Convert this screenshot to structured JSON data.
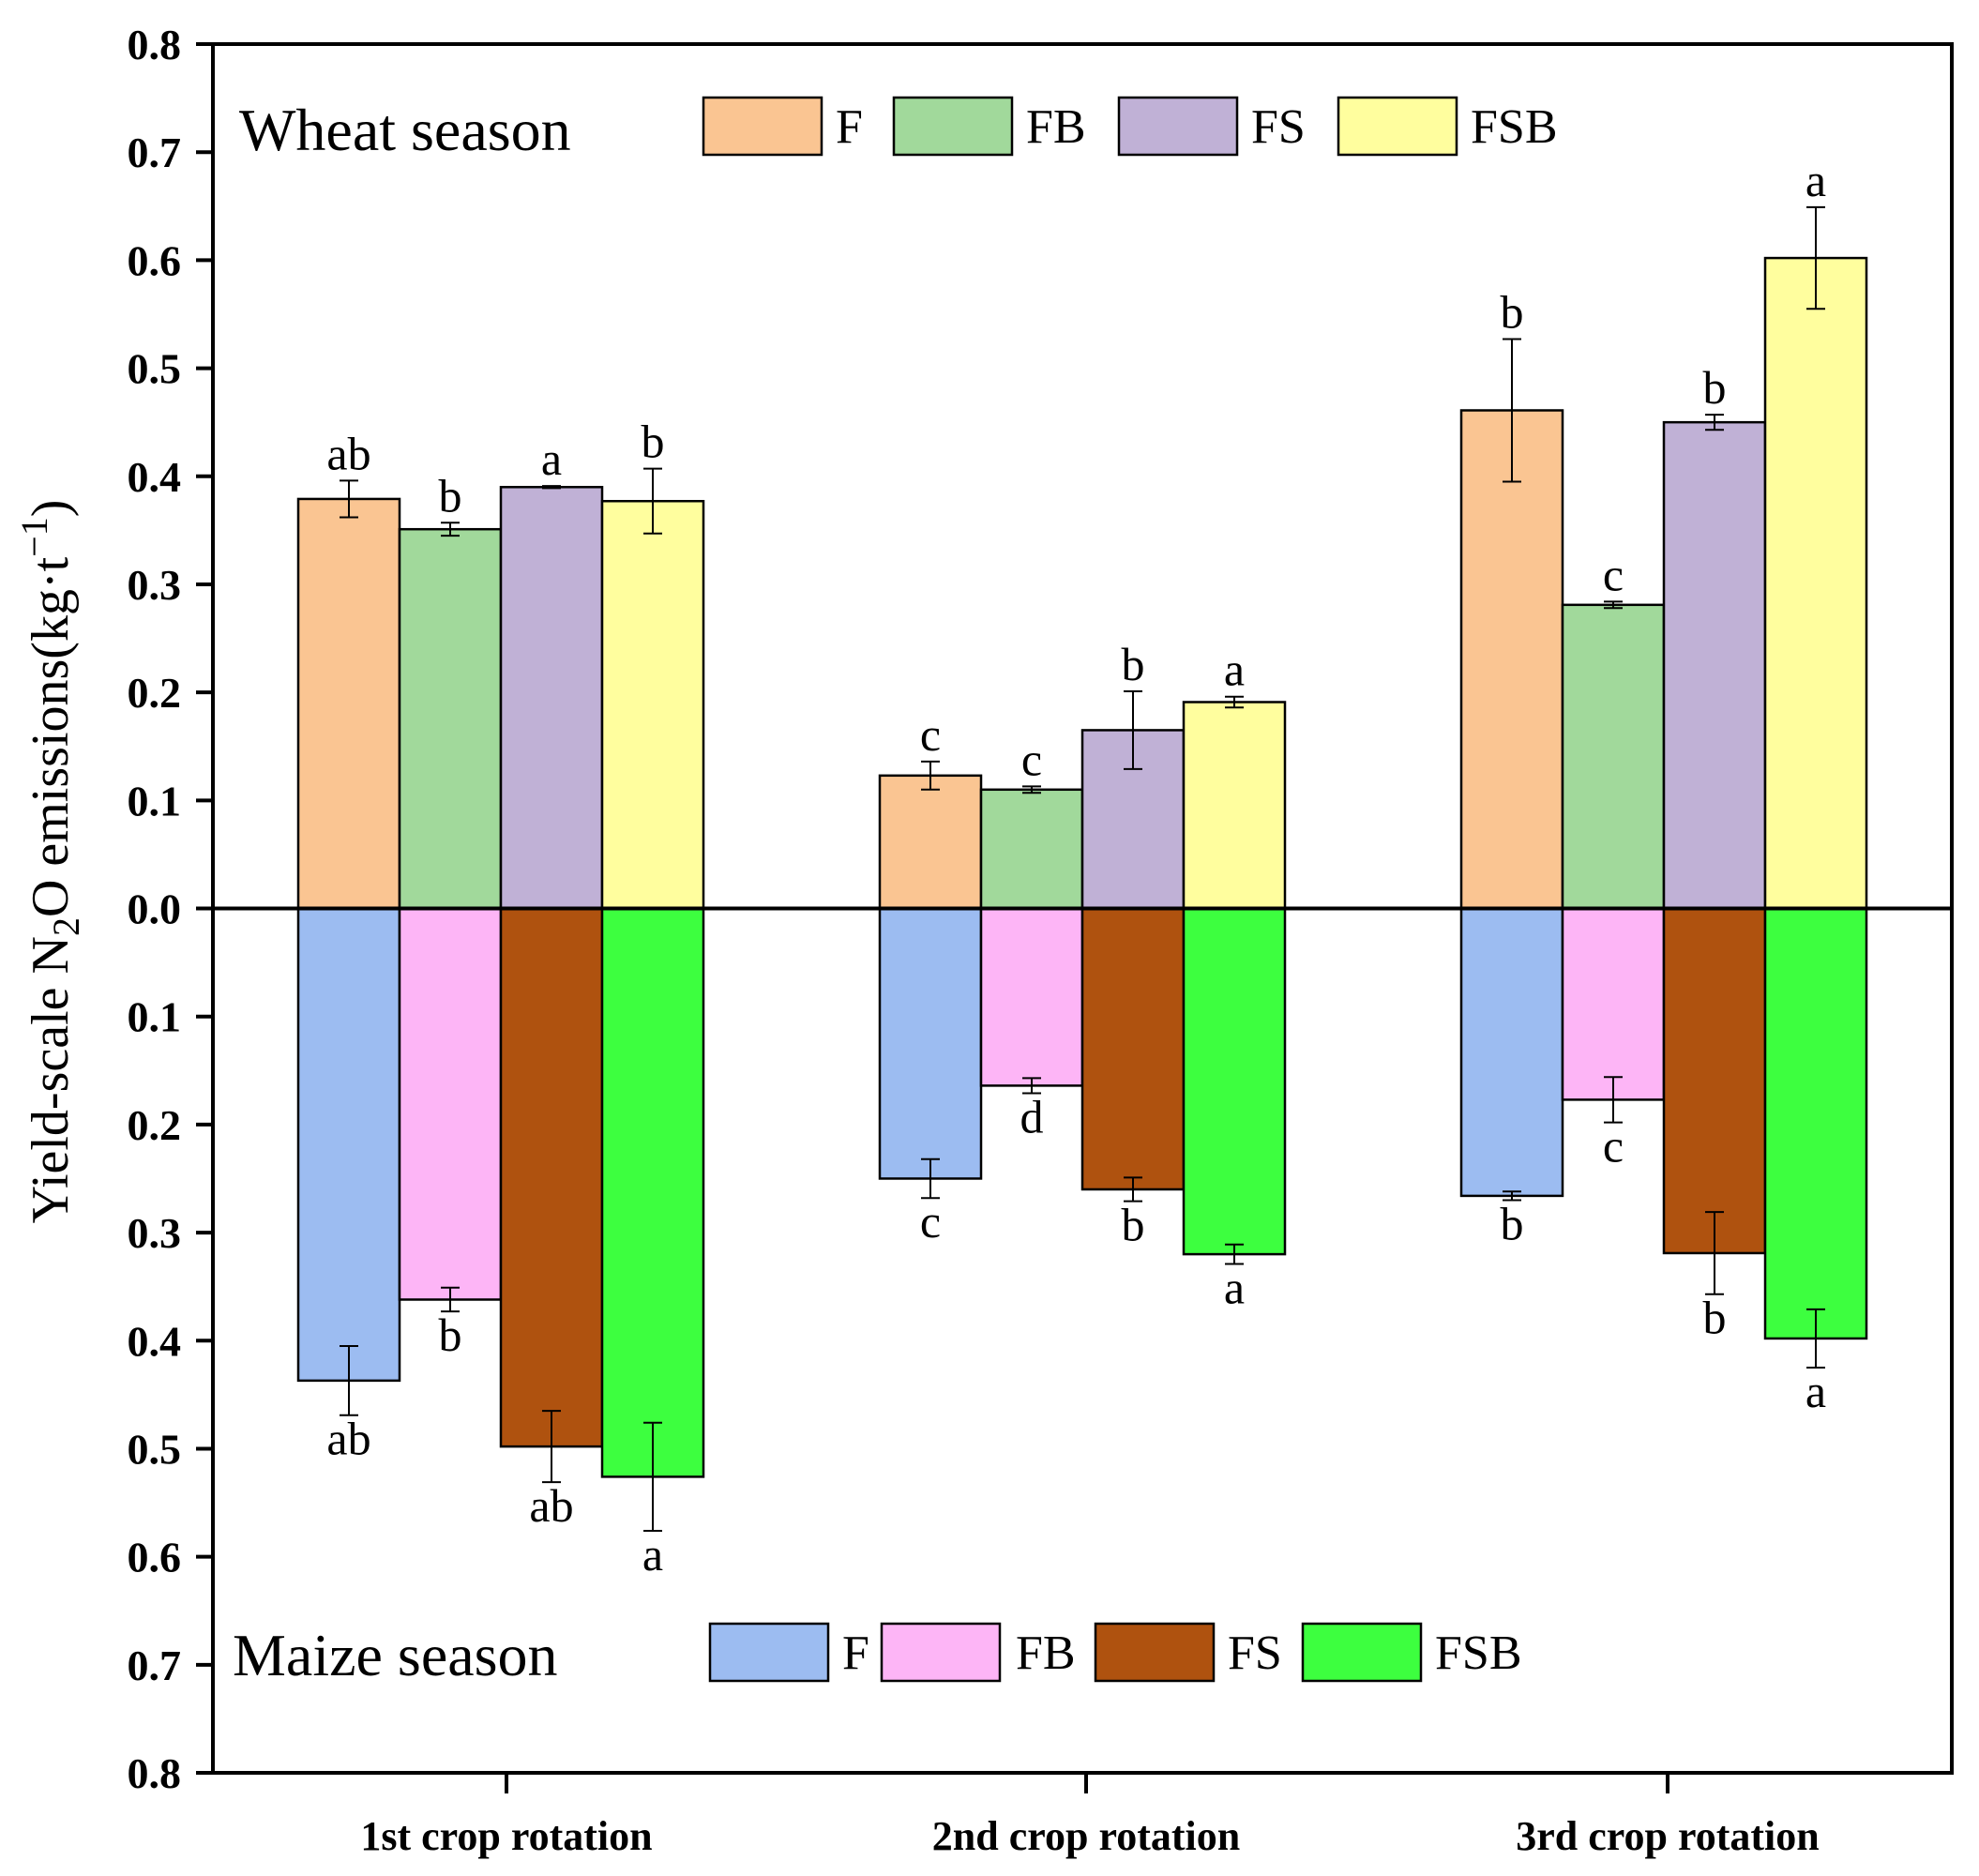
{
  "chart_data": {
    "type": "bar",
    "title": "",
    "xlabel": "",
    "ylabel": "Yield-scale N₂O emissions(kg·t⁻¹)",
    "ylabel_parts": {
      "prefix": "Yield-scale N",
      "sub": "2",
      "middle": "O emissions(kg·t",
      "sup": "−1",
      "suffix": ")"
    },
    "ylim": [
      -0.8,
      0.8
    ],
    "yticks": [
      0.8,
      0.7,
      0.6,
      0.5,
      0.4,
      0.3,
      0.2,
      0.1,
      0.0,
      -0.1,
      -0.2,
      -0.3,
      -0.4,
      -0.5,
      -0.6,
      -0.7,
      -0.8
    ],
    "ytick_labels": [
      "0.8",
      "0.7",
      "0.6",
      "0.5",
      "0.4",
      "0.3",
      "0.2",
      "0.1",
      "0.0",
      "0.1",
      "0.2",
      "0.3",
      "0.4",
      "0.5",
      "0.6",
      "0.7",
      "0.8"
    ],
    "categories": [
      "1st crop rotation",
      "2nd crop rotation",
      "3rd crop rotation"
    ],
    "groups": [
      {
        "name": "Wheat season",
        "direction": "up",
        "series": [
          {
            "name": "F",
            "color": "#FAC592",
            "values": [
              0.379,
              0.123,
              0.461
            ],
            "errors": [
              0.017,
              0.013,
              0.066
            ],
            "labels": [
              "ab",
              "c",
              "b"
            ]
          },
          {
            "name": "FB",
            "color": "#A1D99B",
            "values": [
              0.351,
              0.11,
              0.281
            ],
            "errors": [
              0.006,
              0.003,
              0.003
            ],
            "labels": [
              "b",
              "c",
              "c"
            ]
          },
          {
            "name": "FS",
            "color": "#C0B1D6",
            "values": [
              0.39,
              0.165,
              0.45
            ],
            "errors": [
              0.001,
              0.036,
              0.007
            ],
            "labels": [
              "a",
              "b",
              "b"
            ]
          },
          {
            "name": "FSB",
            "color": "#FFFE9E",
            "values": [
              0.377,
              0.191,
              0.602
            ],
            "errors": [
              0.03,
              0.005,
              0.047
            ],
            "labels": [
              "b",
              "a",
              "a"
            ]
          }
        ]
      },
      {
        "name": "Maize season",
        "direction": "down",
        "series": [
          {
            "name": "F",
            "color": "#9CBCF1",
            "values": [
              0.437,
              0.25,
              0.266
            ],
            "errors": [
              0.032,
              0.018,
              0.004
            ],
            "labels": [
              "ab",
              "c",
              "b"
            ]
          },
          {
            "name": "FB",
            "color": "#FDB5F6",
            "values": [
              0.362,
              0.164,
              0.177
            ],
            "errors": [
              0.011,
              0.007,
              0.021
            ],
            "labels": [
              "b",
              "d",
              "c"
            ]
          },
          {
            "name": "FS",
            "color": "#AF520F",
            "values": [
              0.498,
              0.26,
              0.319
            ],
            "errors": [
              0.033,
              0.011,
              0.038
            ],
            "labels": [
              "ab",
              "b",
              "b"
            ]
          },
          {
            "name": "FSB",
            "color": "#3DFF3F",
            "values": [
              0.526,
              0.32,
              0.398
            ],
            "errors": [
              0.05,
              0.009,
              0.027
            ],
            "labels": [
              "a",
              "a",
              "a"
            ]
          }
        ]
      }
    ],
    "grid": false,
    "legend_placement": "top-left (wheat) and bottom-left (maize)"
  }
}
